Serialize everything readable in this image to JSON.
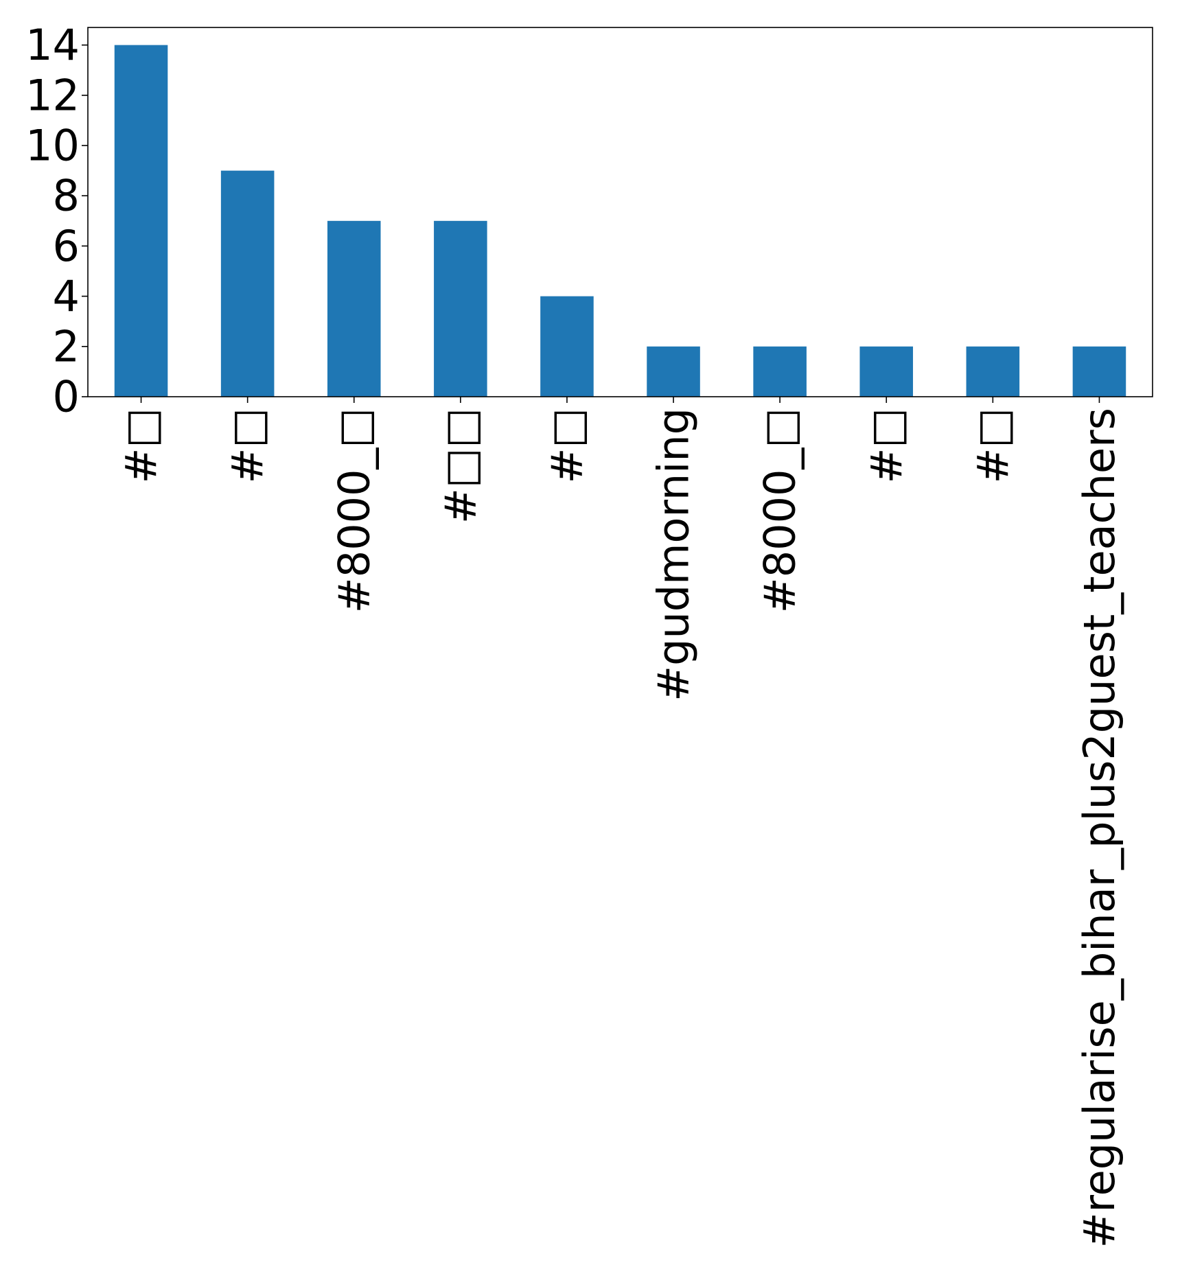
{
  "chart_data": {
    "type": "bar",
    "title": "",
    "xlabel": "",
    "ylabel": "",
    "categories": [
      "#□",
      "#□",
      "#8000_□",
      "#□□",
      "#□",
      "#gudmorning",
      "#8000_□",
      "#□",
      "#□",
      "#regularise_bihar_plus2guest_teachers"
    ],
    "values": [
      14,
      9,
      7,
      7,
      4,
      2,
      2,
      2,
      2,
      2
    ],
    "ylim": [
      0,
      14.7
    ],
    "yticks": [
      0,
      2,
      4,
      6,
      8,
      10,
      12,
      14
    ],
    "ytick_labels": [
      "0",
      "2",
      "4",
      "6",
      "8",
      "10",
      "12",
      "14"
    ],
    "bar_color": "#1f77b4",
    "grid": false,
    "legend": "none"
  }
}
